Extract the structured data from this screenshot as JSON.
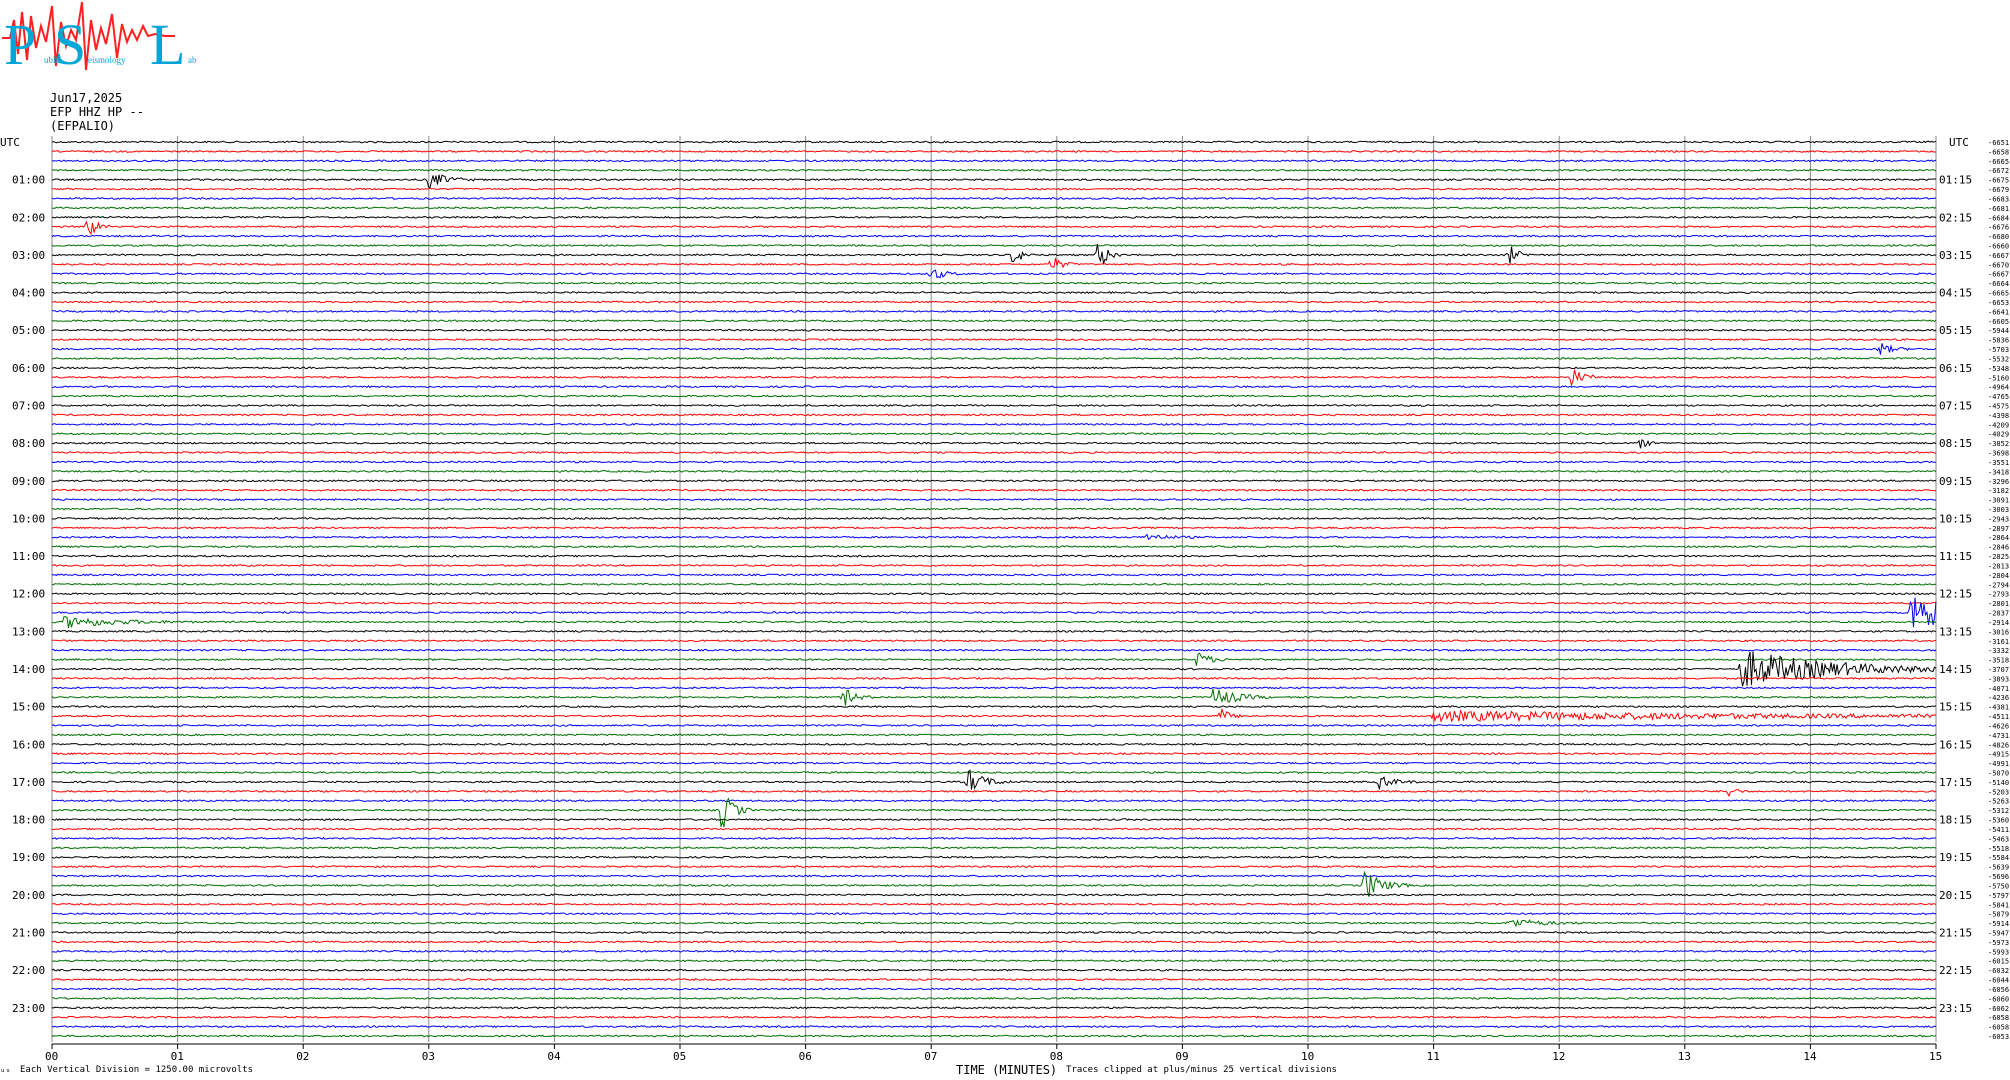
{
  "logo": {
    "big_letters": [
      "P",
      "S",
      "L"
    ],
    "small_words": [
      "ublic",
      "eismology",
      "ab"
    ]
  },
  "header": {
    "date": "Jun17,2025",
    "channel": "EFP HHZ HP --",
    "station": "(EFPALIO)"
  },
  "left_label_utc": "UTC",
  "right_label_utc": "UTC",
  "footer": {
    "scale_note": "Each Vertical Division = 1250.00 microvolts",
    "xaxis_title": "TIME (MINUTES)",
    "clip_note": "Traces clipped at plus/minus 25 vertical divisions"
  },
  "colors": {
    "trace_cycle": [
      "#000000",
      "#ff0000",
      "#0000ff",
      "#007000"
    ],
    "grid": "#888888"
  },
  "chart_data": {
    "type": "line",
    "title": "",
    "xlabel": "TIME (MINUTES)",
    "ylabel": "UTC",
    "xlim": [
      0,
      15
    ],
    "x_ticks": [
      "00",
      "01",
      "02",
      "03",
      "04",
      "05",
      "06",
      "07",
      "08",
      "09",
      "10",
      "11",
      "12",
      "13",
      "14",
      "15"
    ],
    "rows": 96,
    "minutes_per_row": 15,
    "left_hour_labels": [
      "01:00",
      "02:00",
      "03:00",
      "04:00",
      "05:00",
      "06:00",
      "07:00",
      "08:00",
      "09:00",
      "10:00",
      "11:00",
      "12:00",
      "13:00",
      "14:00",
      "15:00",
      "16:00",
      "17:00",
      "18:00",
      "19:00",
      "20:00",
      "21:00",
      "22:00",
      "23:00"
    ],
    "right_hour_labels": [
      "01:15",
      "02:15",
      "03:15",
      "04:15",
      "05:15",
      "06:15",
      "07:15",
      "08:15",
      "09:15",
      "10:15",
      "11:15",
      "12:15",
      "13:15",
      "14:15",
      "15:15",
      "16:15",
      "17:15",
      "18:15",
      "19:15",
      "20:15",
      "21:15",
      "22:15",
      "23:15"
    ],
    "row_offsets": [
      "-6651",
      "-6658",
      "-6665",
      "-6672",
      "-6675",
      "-6679",
      "-6683",
      "-6681",
      "-6684",
      "-6676",
      "-6680",
      "-6660",
      "-6667",
      "-6670",
      "-6667",
      "-6664",
      "-6665",
      "-6653",
      "-6641",
      "-6605",
      "-5944",
      "-5836",
      "-5703",
      "-5532",
      "-5348",
      "-5160",
      "-4964",
      "-4765",
      "-4575",
      "-4398",
      "-4209",
      "-4029",
      "-3852",
      "-3698",
      "-3551",
      "-3418",
      "-3296",
      "-3182",
      "-3091",
      "-3003",
      "-2943",
      "-2897",
      "-2864",
      "-2846",
      "-2825",
      "-2813",
      "-2804",
      "-2794",
      "-2793",
      "-2801",
      "-2837",
      "-2914",
      "-3016",
      "-3161",
      "-3332",
      "-3518",
      "-3707",
      "-3893",
      "-4071",
      "-4236",
      "-4381",
      "-4511",
      "-4626",
      "-4731",
      "-4826",
      "-4915",
      "-4991",
      "-5070",
      "-5140",
      "-5203",
      "-5263",
      "-5312",
      "-5360",
      "-5411",
      "-5463",
      "-5518",
      "-5584",
      "-5639",
      "-5696",
      "-5750",
      "-5797",
      "-5841",
      "-5879",
      "-5914",
      "-5947",
      "-5973",
      "-5993",
      "-6015",
      "-6032",
      "-6044",
      "-6056",
      "-6060",
      "-6062",
      "-6058",
      "-6058",
      "-6053"
    ],
    "events": [
      {
        "row": 4,
        "minute": 3.0,
        "amp": 9,
        "dur": 0.12
      },
      {
        "row": 9,
        "minute": 0.28,
        "amp": 14,
        "dur": 0.06
      },
      {
        "row": 12,
        "minute": 7.65,
        "amp": 11,
        "dur": 0.06
      },
      {
        "row": 12,
        "minute": 8.33,
        "amp": 18,
        "dur": 0.06
      },
      {
        "row": 12,
        "minute": 11.6,
        "amp": 11,
        "dur": 0.06
      },
      {
        "row": 13,
        "minute": 7.95,
        "amp": 10,
        "dur": 0.07
      },
      {
        "row": 14,
        "minute": 7.0,
        "amp": 8,
        "dur": 0.08
      },
      {
        "row": 22,
        "minute": 14.55,
        "amp": 7,
        "dur": 0.08
      },
      {
        "row": 25,
        "minute": 12.1,
        "amp": 10,
        "dur": 0.08
      },
      {
        "row": 32,
        "minute": 12.65,
        "amp": 6,
        "dur": 0.05
      },
      {
        "row": 42,
        "minute": 8.7,
        "amp": 4,
        "dur": 0.14
      },
      {
        "row": 51,
        "minute": 0.1,
        "amp": 6,
        "dur": 0.35
      },
      {
        "row": 50,
        "minute": 14.8,
        "amp": 22,
        "dur": 0.3
      },
      {
        "row": 55,
        "minute": 9.12,
        "amp": 9,
        "dur": 0.08
      },
      {
        "row": 56,
        "minute": 13.45,
        "amp": 20,
        "dur": 0.65
      },
      {
        "row": 59,
        "minute": 6.3,
        "amp": 10,
        "dur": 0.08
      },
      {
        "row": 59,
        "minute": 9.25,
        "amp": 11,
        "dur": 0.15
      },
      {
        "row": 61,
        "minute": 9.3,
        "amp": 9,
        "dur": 0.06
      },
      {
        "row": 61,
        "minute": 11.0,
        "amp": 5,
        "dur": 2.5
      },
      {
        "row": 68,
        "minute": 7.28,
        "amp": 14,
        "dur": 0.12
      },
      {
        "row": 68,
        "minute": 10.57,
        "amp": 7,
        "dur": 0.1
      },
      {
        "row": 69,
        "minute": 13.35,
        "amp": 6,
        "dur": 0.05
      },
      {
        "row": 71,
        "minute": 5.33,
        "amp": 22,
        "dur": 0.08
      },
      {
        "row": 79,
        "minute": 10.45,
        "amp": 16,
        "dur": 0.12
      },
      {
        "row": 83,
        "minute": 11.6,
        "amp": 5,
        "dur": 0.2
      }
    ]
  }
}
